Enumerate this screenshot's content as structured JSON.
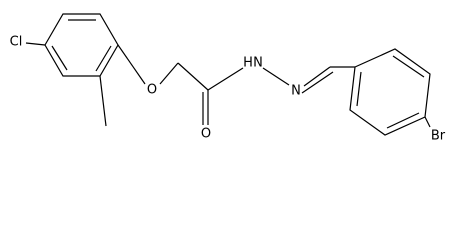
{
  "atoms": [
    {
      "label": "Cl"
    },
    {
      "label": "O"
    },
    {
      "label": "O"
    },
    {
      "label": "H"
    },
    {
      "label": "N"
    },
    {
      "label": "N"
    },
    {
      "label": "Br"
    }
  ]
}
